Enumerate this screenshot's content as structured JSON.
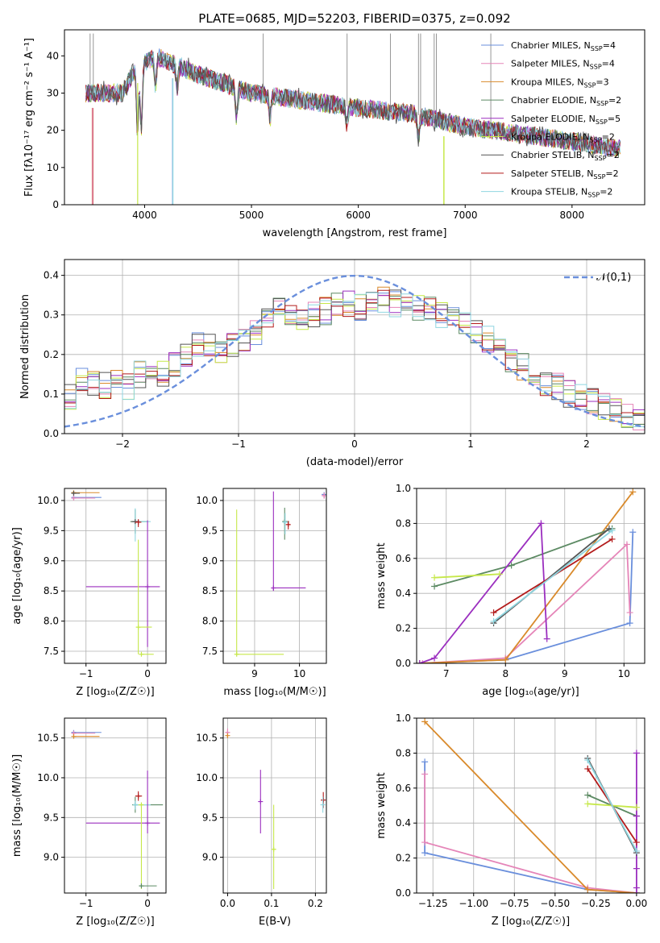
{
  "figure": {
    "title": "PLATE=0685, MJD=52203, FIBERID=0375, z=0.092"
  },
  "series": [
    {
      "name": "Chabrier MILES, N",
      "sub": "SSP",
      "suffix": "=4",
      "color": "#6a8fdc"
    },
    {
      "name": "Salpeter MILES, N",
      "sub": "SSP",
      "suffix": "=4",
      "color": "#e585b8"
    },
    {
      "name": "Kroupa MILES, N",
      "sub": "SSP",
      "suffix": "=3",
      "color": "#d98a2b"
    },
    {
      "name": "Chabrier ELODIE, N",
      "sub": "SSP",
      "suffix": "=2",
      "color": "#5c8a63"
    },
    {
      "name": "Salpeter ELODIE, N",
      "sub": "SSP",
      "suffix": "=5",
      "color": "#9b2fbf"
    },
    {
      "name": "Kroupa ELODIE, N",
      "sub": "SSP",
      "suffix": "=2",
      "color": "#c6e84a"
    },
    {
      "name": "Chabrier STELIB, N",
      "sub": "SSP",
      "suffix": "=2",
      "color": "#555555"
    },
    {
      "name": "Salpeter STELIB, N",
      "sub": "SSP",
      "suffix": "=2",
      "color": "#b31b1b"
    },
    {
      "name": "Kroupa STELIB, N",
      "sub": "SSP",
      "suffix": "=2",
      "color": "#8fd6e0"
    }
  ],
  "chart_data": [
    {
      "id": "spectrum",
      "type": "line",
      "xlabel": "wavelength [Angstrom, rest frame]",
      "ylabel": "Flux [fλ10⁻¹⁷ erg cm⁻² s⁻¹ A⁻¹]",
      "xlim": [
        3250,
        8680
      ],
      "ylim": [
        0,
        47
      ],
      "xticks": [
        4000,
        5000,
        6000,
        7000,
        8000
      ],
      "yticks": [
        0,
        10,
        20,
        30,
        40
      ],
      "x_range": [
        3450,
        8450
      ],
      "continuum": [
        [
          3450,
          30
        ],
        [
          3800,
          30
        ],
        [
          3900,
          36
        ],
        [
          4100,
          40
        ],
        [
          4500,
          35
        ],
        [
          5000,
          30
        ],
        [
          5500,
          28
        ],
        [
          6000,
          26
        ],
        [
          6500,
          24.5
        ],
        [
          7000,
          21
        ],
        [
          7500,
          19
        ],
        [
          8000,
          17
        ],
        [
          8450,
          15
        ]
      ],
      "noise_amplitude": 2.5,
      "absorption_lines": [
        [
          3934,
          17
        ],
        [
          3969,
          17
        ],
        [
          4102,
          8
        ],
        [
          4305,
          6
        ],
        [
          4861,
          8
        ],
        [
          5175,
          6
        ],
        [
          5893,
          5
        ],
        [
          6563,
          6
        ]
      ],
      "sky_spikes_x": [
        3490,
        3520,
        5110,
        5895,
        6300,
        6563,
        6583,
        6710,
        6730,
        7240
      ],
      "series_drops_x": [
        3510,
        3515,
        3935,
        4262,
        4265,
        6800,
        6802,
        3515,
        3512
      ]
    },
    {
      "id": "residuals",
      "type": "step",
      "xlabel": "(data-model)/error",
      "ylabel": "Normed distribution",
      "xlim": [
        -2.5,
        2.5
      ],
      "ylim": [
        0,
        0.44
      ],
      "xticks": [
        -2,
        -1,
        0,
        1,
        2
      ],
      "yticks": [
        0.0,
        0.1,
        0.2,
        0.3,
        0.4
      ],
      "bins": 50,
      "base": [
        0.09,
        0.13,
        0.13,
        0.12,
        0.13,
        0.12,
        0.15,
        0.15,
        0.15,
        0.17,
        0.2,
        0.23,
        0.22,
        0.21,
        0.22,
        0.24,
        0.26,
        0.29,
        0.31,
        0.3,
        0.29,
        0.3,
        0.31,
        0.32,
        0.33,
        0.32,
        0.33,
        0.34,
        0.33,
        0.33,
        0.32,
        0.32,
        0.3,
        0.29,
        0.28,
        0.26,
        0.24,
        0.22,
        0.19,
        0.17,
        0.15,
        0.13,
        0.12,
        0.1,
        0.09,
        0.08,
        0.07,
        0.06,
        0.05,
        0.04
      ],
      "normal_curve": {
        "name": "𝒩(0,1)",
        "mu": 0,
        "sigma": 1,
        "color": "#6a8fdc"
      }
    },
    {
      "id": "age_vs_Z",
      "type": "errorbar",
      "xlabel": "Z [log₁₀(Z/Z☉)]",
      "ylabel": "age  [log₁₀(age/yr)]",
      "xlim": [
        -1.35,
        0.3
      ],
      "ylim": [
        7.3,
        10.2
      ],
      "xticks": [
        -1,
        0
      ],
      "yticks": [
        7.5,
        8.0,
        8.5,
        9.0,
        9.5,
        10.0
      ],
      "points": [
        {
          "s": 0,
          "x": -1.2,
          "y": 10.05,
          "xe": [
            0,
            0.45
          ],
          "ye": [
            0,
            0
          ]
        },
        {
          "s": 1,
          "x": -1.2,
          "y": 10.04,
          "xe": [
            0,
            0.35
          ],
          "ye": [
            0,
            0
          ]
        },
        {
          "s": 2,
          "x": -1.2,
          "y": 10.13,
          "xe": [
            0,
            0.42
          ],
          "ye": [
            0,
            0
          ]
        },
        {
          "s": 6,
          "x": -1.2,
          "y": 10.12,
          "xe": [
            0,
            0.1
          ],
          "ye": [
            0,
            0
          ]
        },
        {
          "s": 3,
          "x": -0.2,
          "y": 9.65,
          "xe": [
            0.08,
            0.2
          ],
          "ye": [
            0.2,
            0.2
          ]
        },
        {
          "s": 8,
          "x": -0.2,
          "y": 9.65,
          "xe": [
            0,
            0.25
          ],
          "ye": [
            0.33,
            0.22
          ]
        },
        {
          "s": 6,
          "x": -0.2,
          "y": 9.65,
          "xe": [
            0.06,
            0.05
          ],
          "ye": [
            0,
            0
          ]
        },
        {
          "s": 7,
          "x": -0.15,
          "y": 9.64,
          "xe": [
            0.05,
            0.05
          ],
          "ye": [
            0.08,
            0.05
          ]
        },
        {
          "s": 4,
          "x": 0.0,
          "y": 8.57,
          "xe": [
            1.0,
            0.2
          ],
          "ye": [
            1.0,
            1.1
          ]
        },
        {
          "s": 5,
          "x": -0.15,
          "y": 7.9,
          "xe": [
            0,
            0.22
          ],
          "ye": [
            0.45,
            1.45
          ]
        },
        {
          "s": 5,
          "x": -0.1,
          "y": 7.45,
          "xe": [
            0,
            0.2
          ],
          "ye": [
            0,
            0
          ]
        }
      ]
    },
    {
      "id": "age_vs_mass",
      "type": "errorbar",
      "xlabel": "mass [log₁₀(M/M☉)]",
      "ylabel": "",
      "xlim": [
        8.3,
        10.6
      ],
      "ylim": [
        7.3,
        10.2
      ],
      "xticks": [
        9,
        10
      ],
      "yticks": [
        7.5,
        8.0,
        8.5,
        9.0,
        9.5,
        10.0
      ],
      "points": [
        {
          "s": 4,
          "x": 9.42,
          "y": 8.55,
          "xe": [
            0,
            0.72
          ],
          "ye": [
            0.05,
            1.6
          ]
        },
        {
          "s": 5,
          "x": 8.6,
          "y": 7.45,
          "xe": [
            0,
            1.05
          ],
          "ye": [
            0,
            2.4
          ]
        },
        {
          "s": 3,
          "x": 9.67,
          "y": 9.65,
          "xe": [
            0.05,
            0.1
          ],
          "ye": [
            0.3,
            0.23
          ]
        },
        {
          "s": 8,
          "x": 9.68,
          "y": 9.64,
          "xe": [
            0.04,
            0.06
          ],
          "ye": [
            0.2,
            0.15
          ]
        },
        {
          "s": 7,
          "x": 9.75,
          "y": 9.6,
          "xe": [
            0.04,
            0.04
          ],
          "ye": [
            0.08,
            0.06
          ]
        },
        {
          "s": 0,
          "x": 10.55,
          "y": 10.1,
          "xe": [
            0.05,
            0
          ],
          "ye": [
            0.05,
            0
          ]
        },
        {
          "s": 1,
          "x": 10.55,
          "y": 10.08,
          "xe": [
            0.05,
            0.05
          ],
          "ye": [
            0.05,
            0.05
          ]
        }
      ]
    },
    {
      "id": "weight_vs_age",
      "type": "line",
      "xlabel": "age  [log₁₀(age/yr)]",
      "ylabel": "mass weight",
      "xlim": [
        6.5,
        10.35
      ],
      "ylim": [
        0,
        1.0
      ],
      "xticks": [
        7,
        8,
        9,
        10
      ],
      "yticks": [
        0.0,
        0.2,
        0.4,
        0.6,
        0.8,
        1.0
      ],
      "lines": [
        {
          "s": 0,
          "x": [
            6.55,
            8.0,
            10.1,
            10.15
          ],
          "y": [
            0.0,
            0.02,
            0.23,
            0.75
          ]
        },
        {
          "s": 1,
          "x": [
            6.6,
            8.0,
            10.05,
            10.1
          ],
          "y": [
            0.0,
            0.03,
            0.68,
            0.29
          ]
        },
        {
          "s": 2,
          "x": [
            6.55,
            8.0,
            10.15
          ],
          "y": [
            0.0,
            0.02,
            0.98
          ]
        },
        {
          "s": 3,
          "x": [
            6.8,
            8.1,
            9.8
          ],
          "y": [
            0.44,
            0.56,
            0.77
          ]
        },
        {
          "s": 4,
          "x": [
            6.55,
            6.8,
            8.6,
            8.7
          ],
          "y": [
            0.0,
            0.03,
            0.8,
            0.14
          ]
        },
        {
          "s": 5,
          "x": [
            6.8,
            7.9
          ],
          "y": [
            0.49,
            0.51
          ]
        },
        {
          "s": 6,
          "x": [
            7.8,
            9.75
          ],
          "y": [
            0.23,
            0.77
          ]
        },
        {
          "s": 7,
          "x": [
            7.8,
            9.8
          ],
          "y": [
            0.29,
            0.71
          ]
        },
        {
          "s": 8,
          "x": [
            7.8,
            9.8
          ],
          "y": [
            0.24,
            0.76
          ]
        }
      ]
    },
    {
      "id": "mass_vs_Z",
      "type": "errorbar",
      "xlabel": "Z [log₁₀(Z/Z☉)]",
      "ylabel": "mass [log₁₀(M/M☉)]",
      "xlim": [
        -1.35,
        0.3
      ],
      "ylim": [
        8.55,
        10.75
      ],
      "xticks": [
        -1,
        0
      ],
      "yticks": [
        9.0,
        9.5,
        10.0,
        10.5
      ],
      "points": [
        {
          "s": 0,
          "x": -1.2,
          "y": 10.57,
          "xe": [
            0,
            0.45
          ],
          "ye": [
            0,
            0
          ]
        },
        {
          "s": 1,
          "x": -1.2,
          "y": 10.56,
          "xe": [
            0,
            0.35
          ],
          "ye": [
            0,
            0
          ]
        },
        {
          "s": 2,
          "x": -1.2,
          "y": 10.52,
          "xe": [
            0,
            0.42
          ],
          "ye": [
            0,
            0
          ]
        },
        {
          "s": 7,
          "x": -0.15,
          "y": 9.77,
          "xe": [
            0.05,
            0.06
          ],
          "ye": [
            0.06,
            0.06
          ]
        },
        {
          "s": 3,
          "x": -0.2,
          "y": 9.66,
          "xe": [
            0.05,
            0.45
          ],
          "ye": [
            0.1,
            0.1
          ]
        },
        {
          "s": 8,
          "x": -0.2,
          "y": 9.66,
          "xe": [
            0,
            0.25
          ],
          "ye": [
            0.06,
            0.05
          ]
        },
        {
          "s": 4,
          "x": 0.0,
          "y": 9.43,
          "xe": [
            1.0,
            0.2
          ],
          "ye": [
            0.13,
            0.66
          ]
        },
        {
          "s": 5,
          "x": -0.1,
          "y": 9.66,
          "xe": [
            0.05,
            0
          ],
          "ye": [
            1.06,
            0
          ]
        },
        {
          "s": 3,
          "x": -0.1,
          "y": 8.64,
          "xe": [
            0,
            0.25
          ],
          "ye": [
            0,
            0
          ]
        }
      ]
    },
    {
      "id": "mass_vs_ebv",
      "type": "errorbar",
      "xlabel": "E(B-V)",
      "ylabel": "",
      "xlim": [
        -0.01,
        0.225
      ],
      "ylim": [
        8.55,
        10.75
      ],
      "xticks": [
        0.0,
        0.1,
        0.2
      ],
      "yticks": [
        9.0,
        9.5,
        10.0,
        10.5
      ],
      "points": [
        {
          "s": 1,
          "x": 0.0,
          "y": 10.57,
          "xe": [
            0,
            0
          ],
          "ye": [
            0.05,
            0.05
          ]
        },
        {
          "s": 2,
          "x": 0.0,
          "y": 10.53,
          "xe": [
            0,
            0
          ],
          "ye": [
            0.03,
            0.03
          ]
        },
        {
          "s": 4,
          "x": 0.075,
          "y": 9.7,
          "xe": [
            0,
            0
          ],
          "ye": [
            0.4,
            0.4
          ]
        },
        {
          "s": 5,
          "x": 0.105,
          "y": 9.1,
          "xe": [
            0,
            0
          ],
          "ye": [
            0.5,
            0.56
          ]
        },
        {
          "s": 7,
          "x": 0.218,
          "y": 9.72,
          "xe": [
            0,
            0
          ],
          "ye": [
            0.1,
            0.1
          ]
        },
        {
          "s": 8,
          "x": 0.217,
          "y": 9.66,
          "xe": [
            0,
            0
          ],
          "ye": [
            0.1,
            0.1
          ]
        }
      ]
    },
    {
      "id": "weight_vs_Z",
      "type": "line",
      "xlabel": "Z [log₁₀(Z/Z☉)]",
      "ylabel": "mass weight",
      "xlim": [
        -1.35,
        0.05
      ],
      "ylim": [
        0,
        1.0
      ],
      "xticks": [
        -1.25,
        -1.0,
        -0.75,
        -0.5,
        -0.25,
        0.0
      ],
      "yticks": [
        0.0,
        0.2,
        0.4,
        0.6,
        0.8,
        1.0
      ],
      "xtick_labels": [
        "−1.25",
        "−1.00",
        "−0.75",
        "−0.50",
        "−0.25",
        "0.00"
      ],
      "lines": [
        {
          "s": 0,
          "x": [
            -1.3,
            -1.3,
            -0.3,
            0.0
          ],
          "y": [
            0.75,
            0.23,
            0.02,
            0.0
          ]
        },
        {
          "s": 1,
          "x": [
            -1.3,
            -1.3,
            -0.3,
            0.0
          ],
          "y": [
            0.68,
            0.29,
            0.03,
            0.0
          ]
        },
        {
          "s": 2,
          "x": [
            -1.3,
            -0.3,
            0.0
          ],
          "y": [
            0.98,
            0.02,
            0.0
          ]
        },
        {
          "s": 3,
          "x": [
            -0.3,
            0.0
          ],
          "y": [
            0.56,
            0.44
          ]
        },
        {
          "s": 4,
          "x": [
            0.0,
            0.0,
            0.0,
            0.0,
            0.0
          ],
          "y": [
            0.8,
            0.44,
            0.14,
            0.03,
            0.0
          ]
        },
        {
          "s": 5,
          "x": [
            -0.3,
            0.0
          ],
          "y": [
            0.51,
            0.49
          ]
        },
        {
          "s": 6,
          "x": [
            -0.3,
            0.0
          ],
          "y": [
            0.77,
            0.23
          ]
        },
        {
          "s": 7,
          "x": [
            -0.3,
            0.0
          ],
          "y": [
            0.71,
            0.29
          ]
        },
        {
          "s": 8,
          "x": [
            -0.3,
            0.0
          ],
          "y": [
            0.76,
            0.24
          ]
        }
      ]
    }
  ]
}
